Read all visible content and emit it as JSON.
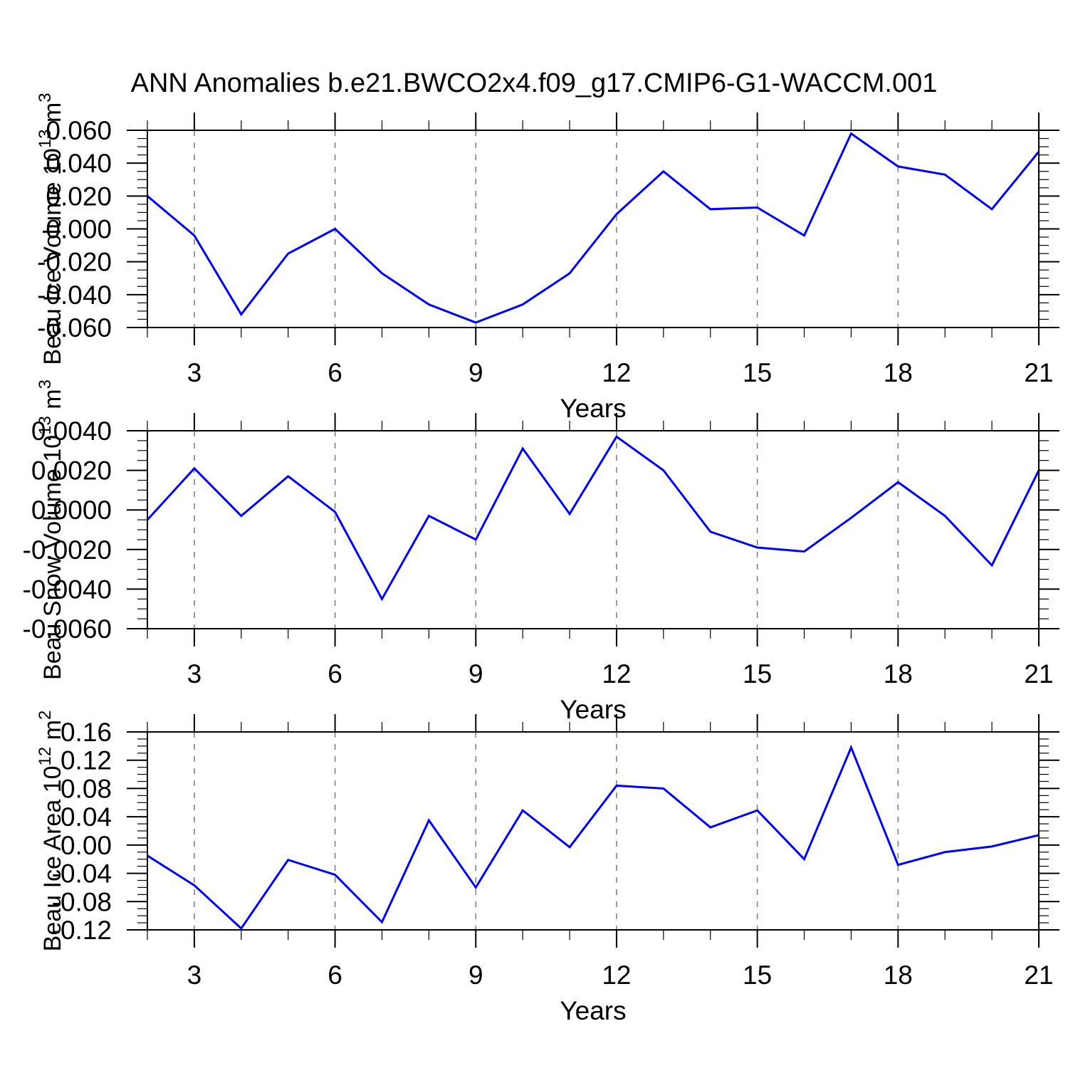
{
  "title": "ANN Anomalies b.e21.BWCO2x4.f09_g17.CMIP6-G1-WACCM.001",
  "colors": {
    "series_line": "#0000ff",
    "axis": "#000000",
    "gridline": "#7a7a7a",
    "background": "#ffffff",
    "text": "#000000"
  },
  "chart_data": [
    {
      "type": "line",
      "name": "Beau Ice Volume",
      "xlabel": "Years",
      "ylabel": "Beau Ice Volume 10^13 m^3",
      "ylabel_rich": [
        [
          "t",
          "Beau Ice Volume 10"
        ],
        [
          "sup",
          "13"
        ],
        [
          "t",
          " m"
        ],
        [
          "sup",
          "3"
        ]
      ],
      "x": [
        2,
        3,
        4,
        5,
        6,
        7,
        8,
        9,
        10,
        11,
        12,
        13,
        14,
        15,
        16,
        17,
        18,
        19,
        20,
        21
      ],
      "values": [
        0.02,
        -0.004,
        -0.052,
        -0.015,
        0.0,
        -0.027,
        -0.046,
        -0.057,
        -0.046,
        -0.027,
        0.009,
        0.035,
        0.012,
        0.013,
        -0.004,
        0.058,
        0.038,
        0.033,
        0.012,
        0.047
      ],
      "xlim": [
        2,
        21
      ],
      "ylim": [
        -0.06,
        0.06
      ],
      "xticks": [
        3,
        6,
        9,
        12,
        15,
        18,
        21
      ],
      "x_minor_step": 1,
      "ytick_step": 0.02,
      "y_minor_step": 0.005,
      "ytick_decimals": 3,
      "grid_x": [
        3,
        6,
        9,
        12,
        15,
        18
      ],
      "grid_on": true,
      "legend": "none",
      "line_color": "#0000ff"
    },
    {
      "type": "line",
      "name": "Beau Snow Volume",
      "xlabel": "Years",
      "ylabel": "Beau Snow Volume 10^13 m^3",
      "ylabel_rich": [
        [
          "t",
          "Beau Snow Volume 10"
        ],
        [
          "sup",
          "13"
        ],
        [
          "t",
          " m"
        ],
        [
          "sup",
          "3"
        ]
      ],
      "x": [
        2,
        3,
        4,
        5,
        6,
        7,
        8,
        9,
        10,
        11,
        12,
        13,
        14,
        15,
        16,
        17,
        18,
        19,
        20,
        21
      ],
      "values": [
        -0.0005,
        0.0021,
        -0.0003,
        0.0017,
        -0.0001,
        -0.0045,
        -0.0003,
        -0.0015,
        0.0031,
        -0.0002,
        0.0037,
        0.002,
        -0.0011,
        -0.0019,
        -0.0021,
        -0.0004,
        0.0014,
        -0.0003,
        -0.0028,
        0.002
      ],
      "xlim": [
        2,
        21
      ],
      "ylim": [
        -0.006,
        0.004
      ],
      "xticks": [
        3,
        6,
        9,
        12,
        15,
        18,
        21
      ],
      "x_minor_step": 1,
      "ytick_step": 0.002,
      "y_minor_step": 0.0005,
      "ytick_decimals": 4,
      "grid_x": [
        3,
        6,
        9,
        12,
        15,
        18
      ],
      "grid_on": true,
      "legend": "none",
      "line_color": "#0000ff"
    },
    {
      "type": "line",
      "name": "Beau Ice Area",
      "xlabel": "Years",
      "ylabel": "Beau Ice Area 10^12 m^2",
      "ylabel_rich": [
        [
          "t",
          "Beau Ice Area 10"
        ],
        [
          "sup",
          "12"
        ],
        [
          "t",
          " m"
        ],
        [
          "sup",
          "2"
        ]
      ],
      "x": [
        2,
        3,
        4,
        5,
        6,
        7,
        8,
        9,
        10,
        11,
        12,
        13,
        14,
        15,
        16,
        17,
        18,
        19,
        20,
        21
      ],
      "values": [
        -0.015,
        -0.057,
        -0.118,
        -0.021,
        -0.042,
        -0.109,
        0.035,
        -0.06,
        0.049,
        -0.003,
        0.084,
        0.08,
        0.025,
        0.049,
        -0.02,
        0.138,
        -0.028,
        -0.01,
        -0.002,
        0.014
      ],
      "xlim": [
        2,
        21
      ],
      "ylim": [
        -0.12,
        0.16
      ],
      "xticks": [
        3,
        6,
        9,
        12,
        15,
        18,
        21
      ],
      "x_minor_step": 1,
      "ytick_step": 0.04,
      "y_minor_step": 0.01,
      "ytick_decimals": 2,
      "grid_x": [
        3,
        6,
        9,
        12,
        15,
        18
      ],
      "grid_on": true,
      "legend": "none",
      "line_color": "#0000ff"
    }
  ]
}
